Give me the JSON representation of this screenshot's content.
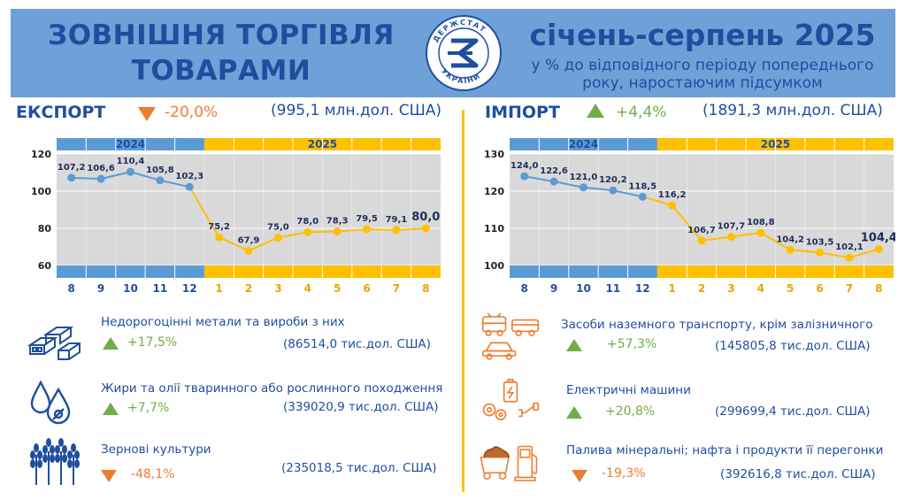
{
  "header": {
    "title_line1": "ЗОВНІШНЯ ТОРГІВЛЯ",
    "title_line2": "ТОВАРАМИ",
    "logo_text": "ДЕРЖСТАТ УКРАЇНИ",
    "period": "січень-серпень 2025",
    "subtitle_line1": "у % до відповідного періоду попереднього",
    "subtitle_line2": "року, наростаючим підсумком"
  },
  "colors": {
    "blue": "#5b9bd5",
    "yellow": "#ffc000",
    "up": "#70ad47",
    "down": "#ed7d31",
    "text": "#1f4e9e"
  },
  "export": {
    "label": "ЕКСПОРТ",
    "change": "-20,0%",
    "direction": "down",
    "total": "(995,1 млн.дол. США)",
    "products": [
      {
        "icon": "metal-bars-icon",
        "name": "Недорогоцінні метали та вироби з них",
        "change": "+17,5%",
        "direction": "up",
        "value": "(86514,0 тис.дол. США)"
      },
      {
        "icon": "oil-drops-icon",
        "name": "Жири та олії тваринного або рослинного походження",
        "change": "+7,7%",
        "direction": "up",
        "value": "(339020,9 тис.дол. США)"
      },
      {
        "icon": "wheat-icon",
        "name": "Зернові культури",
        "change": "-48,1%",
        "direction": "down",
        "value": "(235018,5 тис.дол. США)"
      }
    ]
  },
  "import": {
    "label": "ІМПОРТ",
    "change": "+4,4%",
    "direction": "up",
    "total": "(1891,3 млн.дол. США)",
    "products": [
      {
        "icon": "land-transport-icon",
        "name": "Засоби наземного транспорту, крім залізничного",
        "change": "+57,3%",
        "direction": "up",
        "value": "(145805,8 тис.дол. США)"
      },
      {
        "icon": "electric-machines-icon",
        "name": "Електричні машини",
        "change": "+20,8%",
        "direction": "up",
        "value": "(299699,4 тис.дол. США)"
      },
      {
        "icon": "mineral-fuel-icon",
        "name": "Палива мінеральні; нафта і продукти її перегонки",
        "change": "-19,3%",
        "direction": "down",
        "value": "(392616,8 тис.дол. США)"
      }
    ]
  },
  "chart_data": [
    {
      "type": "line",
      "name": "export",
      "years": [
        {
          "label": "2024",
          "count": 5
        },
        {
          "label": "2025",
          "count": 8
        }
      ],
      "categories": [
        "8",
        "9",
        "10",
        "11",
        "12",
        "1",
        "2",
        "3",
        "4",
        "5",
        "6",
        "7",
        "8"
      ],
      "values": [
        107.2,
        106.6,
        110.4,
        105.8,
        102.3,
        75.2,
        67.9,
        75.0,
        78.0,
        78.3,
        79.5,
        79.1,
        80.0
      ],
      "value_labels": [
        "107,2",
        "106,6",
        "110,4",
        "105,8",
        "102,3",
        "75,2",
        "67,9",
        "75,0",
        "78,0",
        "78,3",
        "79,5",
        "79,1",
        "80,0"
      ],
      "yticks": [
        "60",
        "80",
        "100",
        "120"
      ],
      "ylim": [
        60,
        120
      ],
      "grid": true
    },
    {
      "type": "line",
      "name": "import",
      "years": [
        {
          "label": "2024",
          "count": 5
        },
        {
          "label": "2025",
          "count": 8
        }
      ],
      "categories": [
        "8",
        "9",
        "10",
        "11",
        "12",
        "1",
        "2",
        "3",
        "4",
        "5",
        "6",
        "7",
        "8"
      ],
      "values": [
        124.0,
        122.6,
        121.0,
        120.2,
        118.5,
        116.2,
        106.7,
        107.7,
        108.8,
        104.2,
        103.5,
        102.1,
        104.4
      ],
      "value_labels": [
        "124,0",
        "122,6",
        "121,0",
        "120,2",
        "118,5",
        "116,2",
        "106,7",
        "107,7",
        "108,8",
        "104,2",
        "103,5",
        "102,1",
        "104,4"
      ],
      "yticks": [
        "100",
        "110",
        "120",
        "130"
      ],
      "ylim": [
        100,
        130
      ],
      "grid": true
    }
  ]
}
